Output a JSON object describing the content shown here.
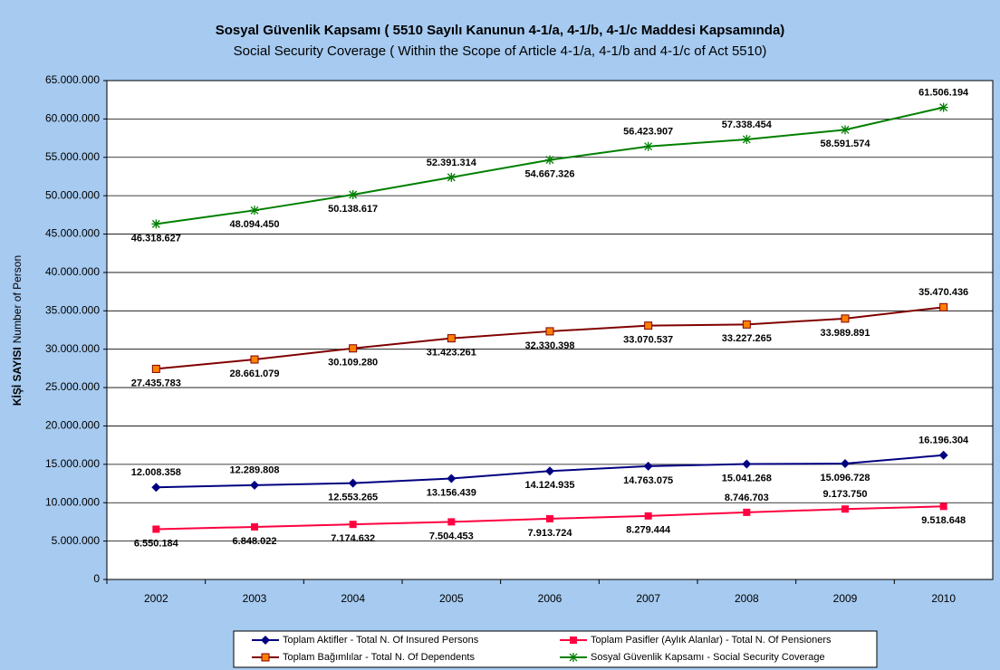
{
  "chart_data": {
    "type": "line",
    "title": "Sosyal Güvenlik Kapsamı ( 5510 Sayılı Kanunun 4-1/a, 4-1/b, 4-1/c Maddesi Kapsamında)",
    "subtitle": "Social Security Coverage ( Within the Scope of Article 4-1/a, 4-1/b and 4-1/c of Act 5510)",
    "ylabel": {
      "main": "KİŞİ SAYISI",
      "sub": "Number of Person"
    },
    "categories": [
      "2002",
      "2003",
      "2004",
      "2005",
      "2006",
      "2007",
      "2008",
      "2009",
      "2010"
    ],
    "ylim": [
      0,
      65000000
    ],
    "yticks": [
      0,
      {
        "value": 5000000,
        "label": "5.000.000"
      },
      {
        "value": 10000000,
        "label": "10.000.000"
      },
      {
        "value": 15000000,
        "label": "15.000.000"
      },
      {
        "value": 20000000,
        "label": "20.000.000"
      },
      {
        "value": 25000000,
        "label": "25.000.000"
      },
      {
        "value": 30000000,
        "label": "30.000.000"
      },
      {
        "value": 35000000,
        "label": "35.000.000"
      },
      {
        "value": 40000000,
        "label": "40.000.000"
      },
      {
        "value": 45000000,
        "label": "45.000.000"
      },
      {
        "value": 50000000,
        "label": "50.000.000"
      },
      {
        "value": 55000000,
        "label": "55.000.000"
      },
      {
        "value": 60000000,
        "label": "60.000.000"
      },
      {
        "value": 65000000,
        "label": "65.000.000"
      }
    ],
    "grid": true,
    "legend": "bottom",
    "series": [
      {
        "name": "Toplam Aktifler - Total N. Of Insured Persons",
        "color": "#000080",
        "marker": "diamond",
        "values": [
          12008358,
          12289808,
          12553265,
          13156439,
          14124935,
          14763075,
          15041268,
          15096728,
          16196304
        ],
        "value_labels": [
          "12.008.358",
          "12.289.808",
          "12.553.265",
          "13.156.439",
          "14.124.935",
          "14.763.075",
          "15.041.268",
          "15.096.728",
          "16.196.304"
        ]
      },
      {
        "name": "Toplam Pasifler (Aylık Alanlar) - Total N. Of Pensioners",
        "color": "#ff0040",
        "marker": "square",
        "values": [
          6550184,
          6848022,
          7174632,
          7504453,
          7913724,
          8279444,
          8746703,
          9173750,
          9518648
        ],
        "value_labels": [
          "6.550.184",
          "6.848.022",
          "7.174.632",
          "7.504.453",
          "7.913.724",
          "8.279.444",
          "8.746.703",
          "9.173.750",
          "9.518.648"
        ]
      },
      {
        "name": "Toplam Bağımlılar - Total N. Of Dependents",
        "color": "#800000",
        "marker": "square-orange",
        "values": [
          27435783,
          28661079,
          30109280,
          31423261,
          32330398,
          33070537,
          33227265,
          33989891,
          35470436
        ],
        "value_labels": [
          "27.435.783",
          "28.661.079",
          "30.109.280",
          "31.423.261",
          "32.330.398",
          "33.070.537",
          "33.227.265",
          "33.989.891",
          "35.470.436"
        ]
      },
      {
        "name": "Sosyal Güvenlik Kapsamı  - Social Security Coverage",
        "color": "#008000",
        "marker": "star",
        "values": [
          46318627,
          48094450,
          50138617,
          52391314,
          54667326,
          56423907,
          57338454,
          58591574,
          61506194
        ],
        "value_labels": [
          "46.318.627",
          "48.094.450",
          "50.138.617",
          "52.391.314",
          "54.667.326",
          "56.423.907",
          "57.338.454",
          "58.591.574",
          "61.506.194"
        ]
      }
    ]
  }
}
